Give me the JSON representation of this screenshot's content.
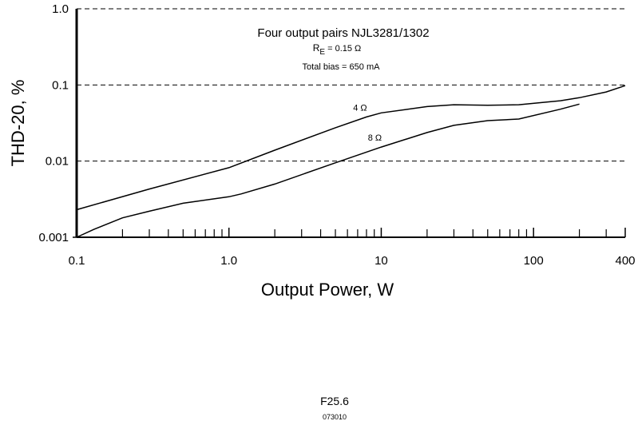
{
  "chart_data": {
    "type": "line",
    "notes": [
      "Four output pairs NJL3281/1302",
      [
        "R",
        "E",
        " = 0.15 Ω"
      ],
      "Total bias = 650 mA"
    ],
    "xlabel": "Output Power, W",
    "ylabel": "THD-20, %",
    "log_x": true,
    "log_y": true,
    "grid": true,
    "color": "#000000",
    "xlim": [
      0.1,
      400
    ],
    "ylim": [
      0.001,
      1
    ],
    "xticks": [
      0.1,
      {
        "value": 1,
        "label": "1.0"
      },
      10,
      100,
      400
    ],
    "xminor": [
      0.2,
      0.3,
      0.4,
      0.5,
      0.6,
      0.7,
      0.8,
      0.9,
      2,
      3,
      4,
      5,
      6,
      7,
      8,
      9,
      20,
      30,
      40,
      50,
      60,
      70,
      80,
      90,
      200,
      300
    ],
    "yticks": [
      0.001,
      0.01,
      0.1,
      {
        "value": 1,
        "label": "1.0"
      }
    ],
    "series": [
      {
        "name": "4 Ω",
        "color": "#000000",
        "x": [
          0.1,
          0.3,
          1,
          2,
          5,
          8,
          10,
          20,
          30,
          50,
          80,
          150,
          200,
          300,
          400
        ],
        "values": [
          0.0023,
          0.0043,
          0.0082,
          0.0139,
          0.0274,
          0.038,
          0.043,
          0.052,
          0.055,
          0.054,
          0.055,
          0.062,
          0.068,
          0.081,
          0.098
        ]
      },
      {
        "name": "8 Ω",
        "color": "#000000",
        "x": [
          0.1,
          0.13,
          0.2,
          0.3,
          0.5,
          1,
          1.2,
          2,
          5,
          10,
          20,
          30,
          50,
          80,
          150,
          200
        ],
        "values": [
          0.001,
          0.00127,
          0.0018,
          0.0022,
          0.0028,
          0.0034,
          0.0037,
          0.005,
          0.0095,
          0.0153,
          0.0237,
          0.0295,
          0.034,
          0.0357,
          0.048,
          0.056
        ]
      }
    ],
    "footnotes": [
      "F25.6",
      "073010"
    ]
  }
}
